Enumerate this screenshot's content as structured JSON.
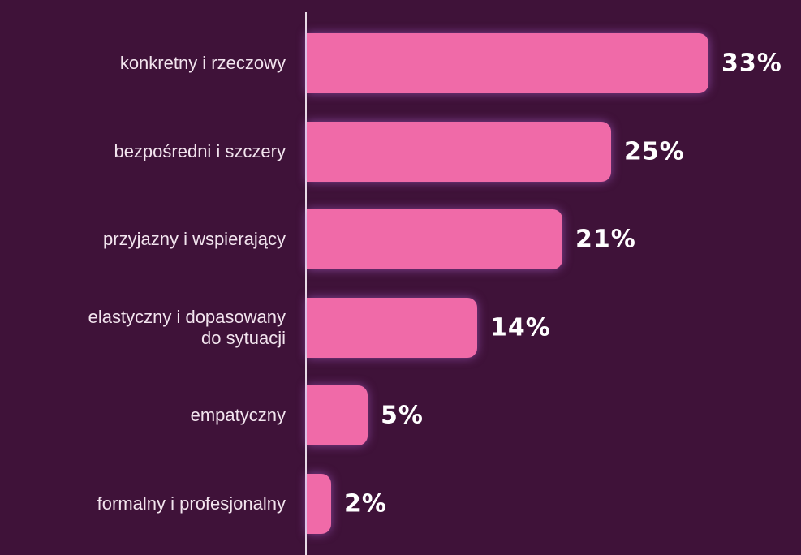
{
  "chart_data": {
    "type": "bar",
    "orientation": "horizontal",
    "categories": [
      "konkretny i rzeczowy",
      "bezpośredni i szczery",
      "przyjazny i wspierający",
      "elastyczny i dopasowany\ndo sytuacji",
      "empatyczny",
      "formalny i profesjonalny"
    ],
    "values": [
      33,
      25,
      21,
      14,
      5,
      2
    ],
    "value_labels": [
      "33%",
      "25%",
      "21%",
      "14%",
      "5%",
      "2%"
    ],
    "color": "#f06aa8"
  }
}
